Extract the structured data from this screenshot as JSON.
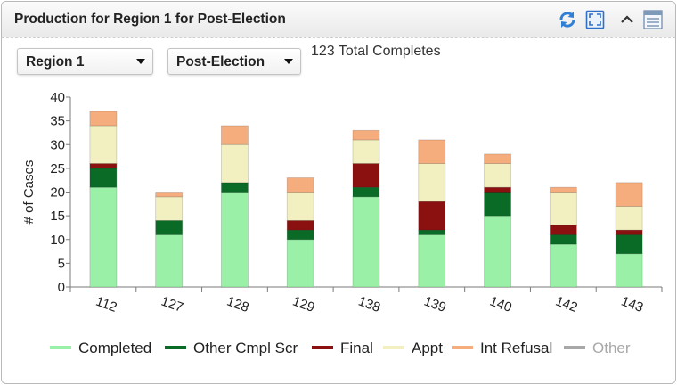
{
  "header": {
    "title": "Production for Region 1 for Post-Election",
    "icons": [
      "refresh-icon",
      "fullscreen-icon",
      "collapse-chevron-up-icon",
      "options-menu-icon"
    ]
  },
  "controls": {
    "region_select": {
      "value": "Region 1"
    },
    "phase_select": {
      "value": "Post-Election"
    },
    "total_text": "123 Total Completes"
  },
  "colors": {
    "completed": "#99f0a6",
    "other_cmpl_scr": "#0a6b27",
    "final": "#8b1111",
    "appt": "#f2efc1",
    "int_refusal": "#f5ad7e",
    "other": "#9a9a9a"
  },
  "chart_data": {
    "type": "bar",
    "stacked": true,
    "categories": [
      "112",
      "127",
      "128",
      "129",
      "138",
      "139",
      "140",
      "142",
      "143"
    ],
    "ylabel": "# of Cases",
    "xlabel": "",
    "ylim": [
      0,
      40
    ],
    "yticks": [
      0,
      5,
      10,
      15,
      20,
      25,
      30,
      35,
      40
    ],
    "grid": false,
    "legend_position": "bottom",
    "series": [
      {
        "name": "Completed",
        "color": "#99f0a6",
        "values": [
          21,
          11,
          20,
          10,
          19,
          11,
          15,
          9,
          7
        ]
      },
      {
        "name": "Other Cmpl Scr",
        "color": "#0a6b27",
        "values": [
          4,
          3,
          2,
          2,
          2,
          1,
          5,
          2,
          4
        ]
      },
      {
        "name": "Final",
        "color": "#8b1111",
        "values": [
          1,
          0,
          0,
          2,
          5,
          6,
          1,
          2,
          1
        ]
      },
      {
        "name": "Appt",
        "color": "#f2efc1",
        "values": [
          8,
          5,
          8,
          6,
          5,
          8,
          5,
          7,
          5
        ]
      },
      {
        "name": "Int Refusal",
        "color": "#f5ad7e",
        "values": [
          3,
          1,
          4,
          3,
          2,
          5,
          2,
          1,
          5
        ]
      },
      {
        "name": "Other",
        "color": "#9a9a9a",
        "values": [
          0,
          0,
          0,
          0,
          0,
          0,
          0,
          0,
          0
        ],
        "disabled": true
      }
    ]
  }
}
